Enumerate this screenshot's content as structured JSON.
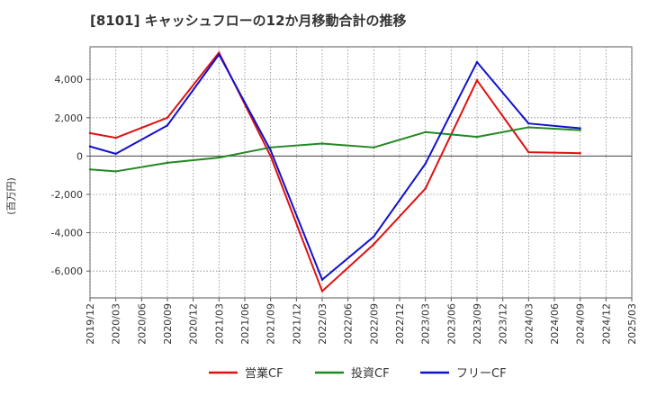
{
  "chart_data": {
    "type": "line",
    "title": "[8101]  キャッシュフローの12か月移動合計の推移",
    "ylabel": "(百万円)",
    "xlabel": "",
    "ylim": [
      -7400,
      5700
    ],
    "y_ticks": [
      -6000,
      -4000,
      -2000,
      0,
      2000,
      4000
    ],
    "y_tick_labels": [
      "-6,000",
      "-4,000",
      "-2,000",
      "0",
      "2,000",
      "4,000"
    ],
    "categories": [
      "2019/12",
      "2020/03",
      "2020/06",
      "2020/09",
      "2020/12",
      "2021/03",
      "2021/06",
      "2021/09",
      "2021/12",
      "2022/03",
      "2022/06",
      "2022/09",
      "2022/12",
      "2023/03",
      "2023/06",
      "2023/09",
      "2023/12",
      "2024/03",
      "2024/06",
      "2024/09",
      "2024/12",
      "2025/03"
    ],
    "series": [
      {
        "name": "営業CF",
        "color": "#dd1111",
        "values": [
          1200,
          950,
          null,
          2000,
          null,
          5400,
          null,
          0,
          null,
          -7050,
          null,
          -4600,
          null,
          -1700,
          null,
          3950,
          null,
          200,
          null,
          150,
          null,
          null
        ]
      },
      {
        "name": "投資CF",
        "color": "#228822",
        "values": [
          -700,
          -800,
          null,
          -350,
          null,
          -80,
          null,
          450,
          null,
          650,
          null,
          450,
          null,
          1250,
          null,
          1000,
          null,
          1500,
          null,
          1350,
          null,
          null
        ]
      },
      {
        "name": "フリーCF",
        "color": "#1111cc",
        "values": [
          500,
          120,
          null,
          1600,
          null,
          5300,
          null,
          300,
          null,
          -6450,
          null,
          -4200,
          null,
          -400,
          null,
          4900,
          null,
          1700,
          null,
          1450,
          null,
          null
        ]
      }
    ],
    "legend_position": "bottom",
    "grid": true
  }
}
